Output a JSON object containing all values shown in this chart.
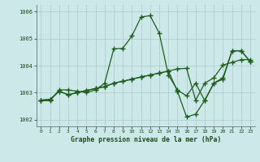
{
  "title": "Graphe pression niveau de la mer (hPa)",
  "bg_color": "#cce8e8",
  "grid_color": "#aacccc",
  "line_color": "#1e5c1e",
  "ylim": [
    1001.75,
    1006.25
  ],
  "xlim": [
    -0.5,
    23.5
  ],
  "yticks": [
    1002,
    1003,
    1004,
    1005,
    1006
  ],
  "xticks": [
    0,
    1,
    2,
    3,
    4,
    5,
    6,
    7,
    8,
    9,
    10,
    11,
    12,
    13,
    14,
    15,
    16,
    17,
    18,
    19,
    20,
    21,
    22,
    23
  ],
  "s1_y": [
    1002.7,
    1002.7,
    1003.1,
    1003.1,
    1003.05,
    1003.0,
    1003.1,
    1003.35,
    1004.62,
    1004.64,
    1005.1,
    1005.8,
    1005.85,
    1005.2,
    1003.65,
    1003.1,
    1002.88,
    1003.35,
    1002.7,
    1003.35,
    1003.5,
    1004.55,
    1004.55,
    1004.15
  ],
  "s2_y": [
    1002.72,
    1002.75,
    1003.05,
    1002.92,
    1003.0,
    1003.08,
    1003.15,
    1003.22,
    1003.35,
    1003.42,
    1003.5,
    1003.58,
    1003.65,
    1003.72,
    1003.8,
    1003.88,
    1003.9,
    1002.72,
    1003.35,
    1003.55,
    1004.02,
    1004.12,
    1004.22,
    1004.22
  ],
  "s3_y": [
    1002.72,
    1002.75,
    1003.05,
    1002.92,
    1003.0,
    1003.08,
    1003.15,
    1003.22,
    1003.35,
    1003.42,
    1003.5,
    1003.58,
    1003.65,
    1003.72,
    1003.8,
    1003.05,
    1002.1,
    1002.2,
    1002.72,
    1003.35,
    1003.55,
    1004.55,
    1004.55,
    1004.15
  ]
}
